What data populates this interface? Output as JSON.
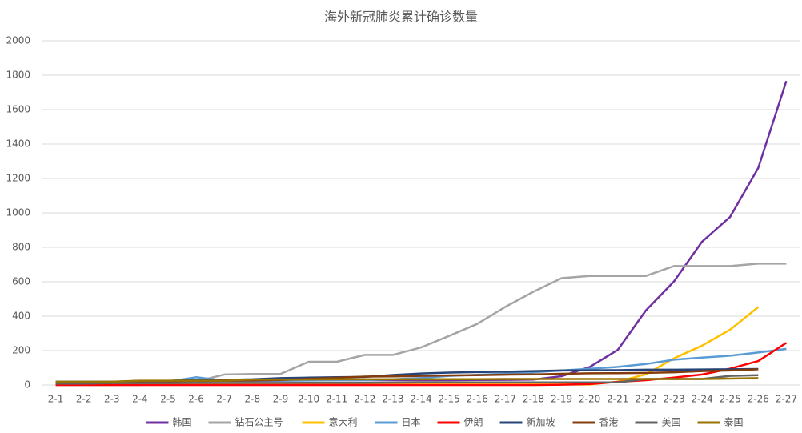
{
  "chart_data": {
    "type": "line",
    "title": "海外新冠肺炎累计确诊数量",
    "categories": [
      "2-1",
      "2-2",
      "2-3",
      "2-4",
      "2-5",
      "2-6",
      "2-7",
      "2-8",
      "2-9",
      "2-10",
      "2-11",
      "2-12",
      "2-13",
      "2-14",
      "2-15",
      "2-16",
      "2-17",
      "2-18",
      "2-19",
      "2-20",
      "2-21",
      "2-22",
      "2-23",
      "2-24",
      "2-25",
      "2-26",
      "2-27"
    ],
    "ylim": [
      0,
      2000
    ],
    "yticks": [
      0,
      200,
      400,
      600,
      800,
      1000,
      1200,
      1400,
      1600,
      1800,
      2000
    ],
    "grid": true,
    "legend": "bottom",
    "series": [
      {
        "name": "韩国",
        "color": "#7030a0",
        "values": [
          12,
          15,
          15,
          16,
          16,
          23,
          24,
          24,
          25,
          27,
          28,
          28,
          28,
          28,
          28,
          29,
          30,
          31,
          51,
          104,
          204,
          433,
          602,
          833,
          977,
          1261,
          1766
        ]
      },
      {
        "name": "钻石公主号",
        "color": "#a5a5a5",
        "values": [
          0,
          0,
          0,
          0,
          10,
          20,
          61,
          64,
          64,
          135,
          135,
          175,
          175,
          218,
          285,
          355,
          454,
          542,
          621,
          634,
          634,
          634,
          691,
          691,
          691,
          705,
          705
        ]
      },
      {
        "name": "意大利",
        "color": "#ffc000",
        "values": [
          2,
          2,
          2,
          2,
          2,
          2,
          3,
          3,
          3,
          3,
          3,
          3,
          3,
          3,
          3,
          3,
          3,
          3,
          3,
          3,
          20,
          62,
          155,
          229,
          322,
          453,
          null
        ]
      },
      {
        "name": "日本",
        "color": "#5b9bd5",
        "values": [
          20,
          20,
          20,
          20,
          20,
          45,
          25,
          25,
          26,
          26,
          28,
          28,
          33,
          41,
          53,
          59,
          66,
          74,
          84,
          94,
          105,
          122,
          147,
          159,
          170,
          189,
          210
        ]
      },
      {
        "name": "伊朗",
        "color": "#ff0000",
        "values": [
          0,
          0,
          0,
          0,
          0,
          0,
          0,
          0,
          0,
          0,
          0,
          0,
          0,
          0,
          0,
          0,
          0,
          0,
          2,
          5,
          18,
          28,
          43,
          61,
          95,
          139,
          245
        ]
      },
      {
        "name": "新加坡",
        "color": "#264478",
        "values": [
          18,
          18,
          18,
          24,
          24,
          28,
          30,
          33,
          40,
          43,
          45,
          47,
          58,
          67,
          72,
          75,
          77,
          81,
          84,
          85,
          86,
          89,
          89,
          90,
          91,
          93,
          null
        ]
      },
      {
        "name": "香港",
        "color": "#843c0c",
        "values": [
          14,
          15,
          15,
          17,
          21,
          24,
          25,
          26,
          29,
          36,
          42,
          49,
          50,
          53,
          56,
          57,
          60,
          62,
          65,
          68,
          69,
          70,
          74,
          81,
          84,
          91,
          null
        ]
      },
      {
        "name": "美国",
        "color": "#636363",
        "values": [
          8,
          8,
          11,
          11,
          11,
          12,
          12,
          12,
          12,
          13,
          13,
          13,
          14,
          15,
          15,
          15,
          15,
          15,
          15,
          15,
          15,
          35,
          35,
          35,
          53,
          57,
          null
        ]
      },
      {
        "name": "泰国",
        "color": "#997300",
        "values": [
          19,
          19,
          19,
          25,
          25,
          25,
          25,
          32,
          32,
          32,
          33,
          33,
          33,
          33,
          34,
          34,
          35,
          35,
          35,
          35,
          35,
          35,
          35,
          35,
          37,
          40,
          null
        ]
      }
    ]
  }
}
